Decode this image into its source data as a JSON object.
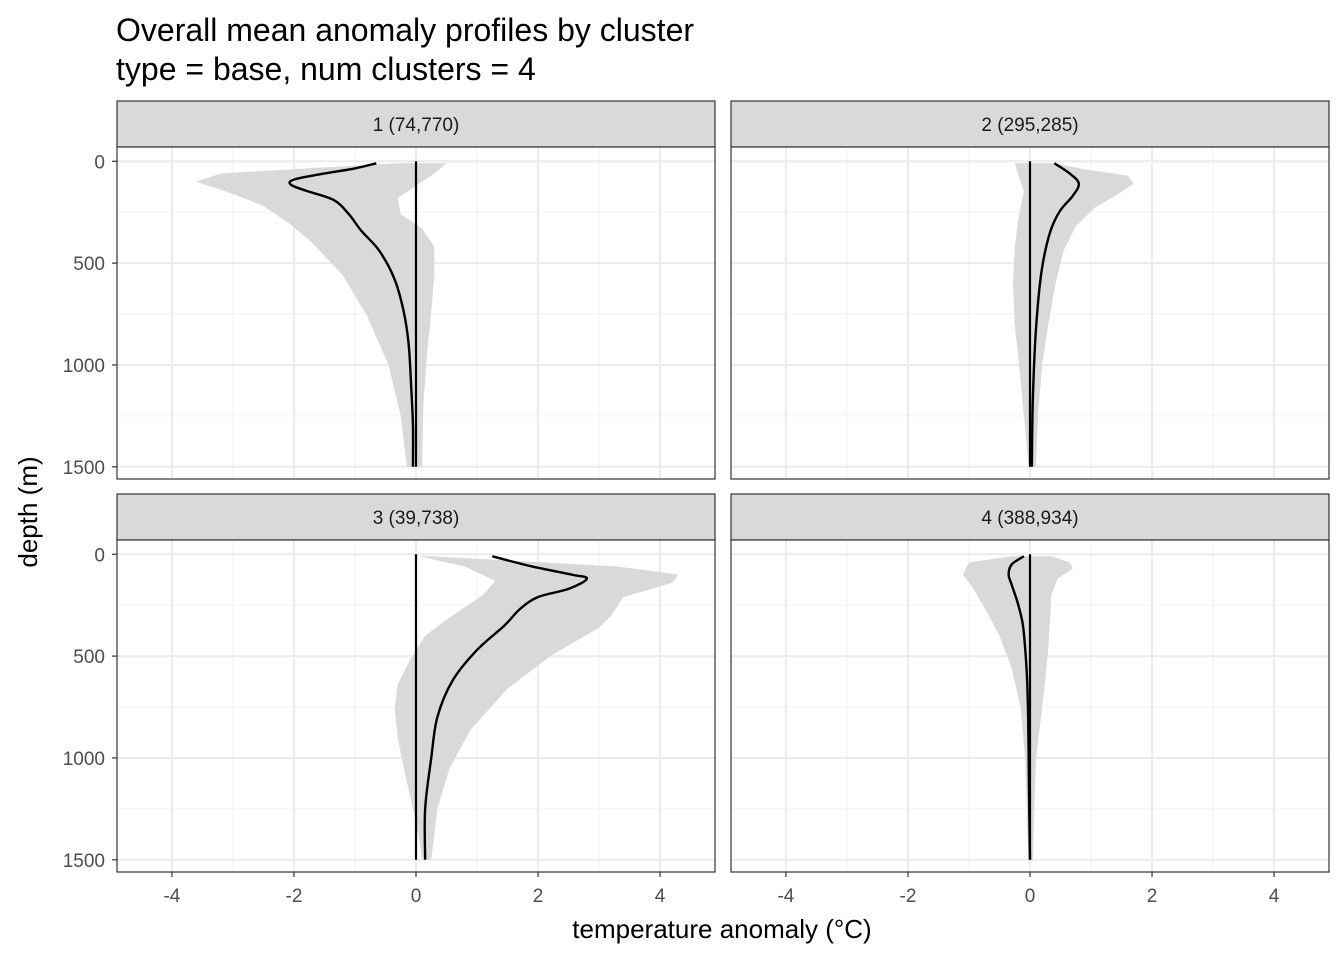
{
  "chart_data": {
    "type": "line",
    "title": "Overall mean anomaly profiles by cluster",
    "subtitle": "type = base, num clusters = 4",
    "xlabel": "temperature anomaly (°C)",
    "ylabel": "depth (m)",
    "xlim": [
      -4.9,
      4.9
    ],
    "ylim": [
      1560,
      -70
    ],
    "x_ticks": [
      -4,
      -2,
      0,
      2,
      4
    ],
    "x_tick_labels": [
      "-4",
      "-2",
      "0",
      "2",
      "4"
    ],
    "y_ticks": [
      0,
      500,
      1000,
      1500
    ],
    "y_tick_labels": [
      "0",
      "500",
      "1000",
      "1500"
    ],
    "y_reversed": true,
    "grid": true,
    "reference_line_x": 0,
    "band_color": "#d9d9d9",
    "line_color": "#000000",
    "panels": [
      {
        "label": "1 (74,770)",
        "mean": [
          [
            -0.65,
            10
          ],
          [
            -1.0,
            35
          ],
          [
            -1.5,
            60
          ],
          [
            -2.0,
            90
          ],
          [
            -2.05,
            115
          ],
          [
            -1.8,
            145
          ],
          [
            -1.35,
            190
          ],
          [
            -1.1,
            260
          ],
          [
            -0.9,
            340
          ],
          [
            -0.6,
            440
          ],
          [
            -0.35,
            580
          ],
          [
            -0.2,
            740
          ],
          [
            -0.12,
            900
          ],
          [
            -0.08,
            1100
          ],
          [
            -0.05,
            1300
          ],
          [
            -0.05,
            1500
          ]
        ],
        "band_low": [
          [
            -0.3,
            10
          ],
          [
            -1.5,
            30
          ],
          [
            -3.2,
            60
          ],
          [
            -3.6,
            100
          ],
          [
            -3.0,
            160
          ],
          [
            -2.5,
            220
          ],
          [
            -2.1,
            300
          ],
          [
            -1.7,
            400
          ],
          [
            -1.2,
            560
          ],
          [
            -0.8,
            760
          ],
          [
            -0.45,
            1000
          ],
          [
            -0.25,
            1250
          ],
          [
            -0.15,
            1500
          ]
        ],
        "band_high": [
          [
            0.5,
            10
          ],
          [
            0.3,
            60
          ],
          [
            0.0,
            120
          ],
          [
            -0.3,
            180
          ],
          [
            -0.25,
            260
          ],
          [
            0.1,
            330
          ],
          [
            0.3,
            420
          ],
          [
            0.3,
            560
          ],
          [
            0.25,
            740
          ],
          [
            0.18,
            950
          ],
          [
            0.12,
            1200
          ],
          [
            0.1,
            1500
          ]
        ]
      },
      {
        "label": "2 (295,285)",
        "mean": [
          [
            0.4,
            10
          ],
          [
            0.65,
            60
          ],
          [
            0.8,
            110
          ],
          [
            0.7,
            170
          ],
          [
            0.5,
            240
          ],
          [
            0.35,
            330
          ],
          [
            0.25,
            440
          ],
          [
            0.18,
            560
          ],
          [
            0.13,
            700
          ],
          [
            0.09,
            860
          ],
          [
            0.06,
            1050
          ],
          [
            0.04,
            1250
          ],
          [
            0.03,
            1500
          ]
        ],
        "band_low": [
          [
            -0.25,
            10
          ],
          [
            -0.2,
            60
          ],
          [
            -0.1,
            150
          ],
          [
            -0.15,
            220
          ],
          [
            -0.2,
            300
          ],
          [
            -0.25,
            420
          ],
          [
            -0.28,
            600
          ],
          [
            -0.25,
            800
          ],
          [
            -0.18,
            1000
          ],
          [
            -0.1,
            1250
          ],
          [
            -0.02,
            1500
          ]
        ],
        "band_high": [
          [
            0.4,
            10
          ],
          [
            0.9,
            40
          ],
          [
            1.6,
            70
          ],
          [
            1.7,
            110
          ],
          [
            1.45,
            160
          ],
          [
            1.05,
            230
          ],
          [
            0.75,
            320
          ],
          [
            0.55,
            440
          ],
          [
            0.42,
            600
          ],
          [
            0.3,
            800
          ],
          [
            0.2,
            1000
          ],
          [
            0.13,
            1250
          ],
          [
            0.1,
            1500
          ]
        ]
      },
      {
        "label": "3 (39,738)",
        "mean": [
          [
            1.25,
            10
          ],
          [
            1.9,
            60
          ],
          [
            2.55,
            100
          ],
          [
            2.8,
            120
          ],
          [
            2.5,
            170
          ],
          [
            2.0,
            210
          ],
          [
            1.7,
            270
          ],
          [
            1.45,
            350
          ],
          [
            1.0,
            470
          ],
          [
            0.6,
            620
          ],
          [
            0.35,
            800
          ],
          [
            0.25,
            1000
          ],
          [
            0.15,
            1250
          ],
          [
            0.15,
            1500
          ]
        ],
        "band_low": [
          [
            0.05,
            10
          ],
          [
            0.8,
            60
          ],
          [
            1.3,
            130
          ],
          [
            1.1,
            200
          ],
          [
            0.6,
            300
          ],
          [
            0.15,
            400
          ],
          [
            -0.1,
            520
          ],
          [
            -0.3,
            640
          ],
          [
            -0.35,
            760
          ],
          [
            -0.3,
            900
          ],
          [
            -0.2,
            1050
          ],
          [
            -0.05,
            1250
          ],
          [
            0.05,
            1400
          ],
          [
            0.1,
            1500
          ]
        ],
        "band_high": [
          [
            0.25,
            10
          ],
          [
            3.3,
            60
          ],
          [
            4.3,
            100
          ],
          [
            4.2,
            140
          ],
          [
            3.4,
            210
          ],
          [
            3.2,
            300
          ],
          [
            3.0,
            360
          ],
          [
            2.2,
            500
          ],
          [
            1.5,
            660
          ],
          [
            0.9,
            860
          ],
          [
            0.55,
            1050
          ],
          [
            0.35,
            1250
          ],
          [
            0.25,
            1500
          ]
        ]
      },
      {
        "label": "4 (388,934)",
        "mean": [
          [
            -0.1,
            10
          ],
          [
            -0.3,
            50
          ],
          [
            -0.35,
            100
          ],
          [
            -0.3,
            150
          ],
          [
            -0.2,
            240
          ],
          [
            -0.12,
            340
          ],
          [
            -0.08,
            460
          ],
          [
            -0.05,
            600
          ],
          [
            -0.03,
            800
          ],
          [
            -0.02,
            1050
          ],
          [
            -0.01,
            1300
          ],
          [
            0.0,
            1500
          ]
        ],
        "band_low": [
          [
            -0.3,
            10
          ],
          [
            -1.0,
            40
          ],
          [
            -1.1,
            100
          ],
          [
            -0.95,
            160
          ],
          [
            -0.75,
            260
          ],
          [
            -0.5,
            400
          ],
          [
            -0.3,
            560
          ],
          [
            -0.15,
            760
          ],
          [
            -0.08,
            1000
          ],
          [
            -0.05,
            1300
          ],
          [
            -0.03,
            1500
          ]
        ],
        "band_high": [
          [
            0.35,
            10
          ],
          [
            0.65,
            40
          ],
          [
            0.7,
            70
          ],
          [
            0.45,
            120
          ],
          [
            0.35,
            200
          ],
          [
            0.33,
            320
          ],
          [
            0.3,
            460
          ],
          [
            0.25,
            620
          ],
          [
            0.18,
            800
          ],
          [
            0.1,
            1000
          ],
          [
            0.07,
            1250
          ],
          [
            0.05,
            1500
          ]
        ]
      }
    ]
  }
}
